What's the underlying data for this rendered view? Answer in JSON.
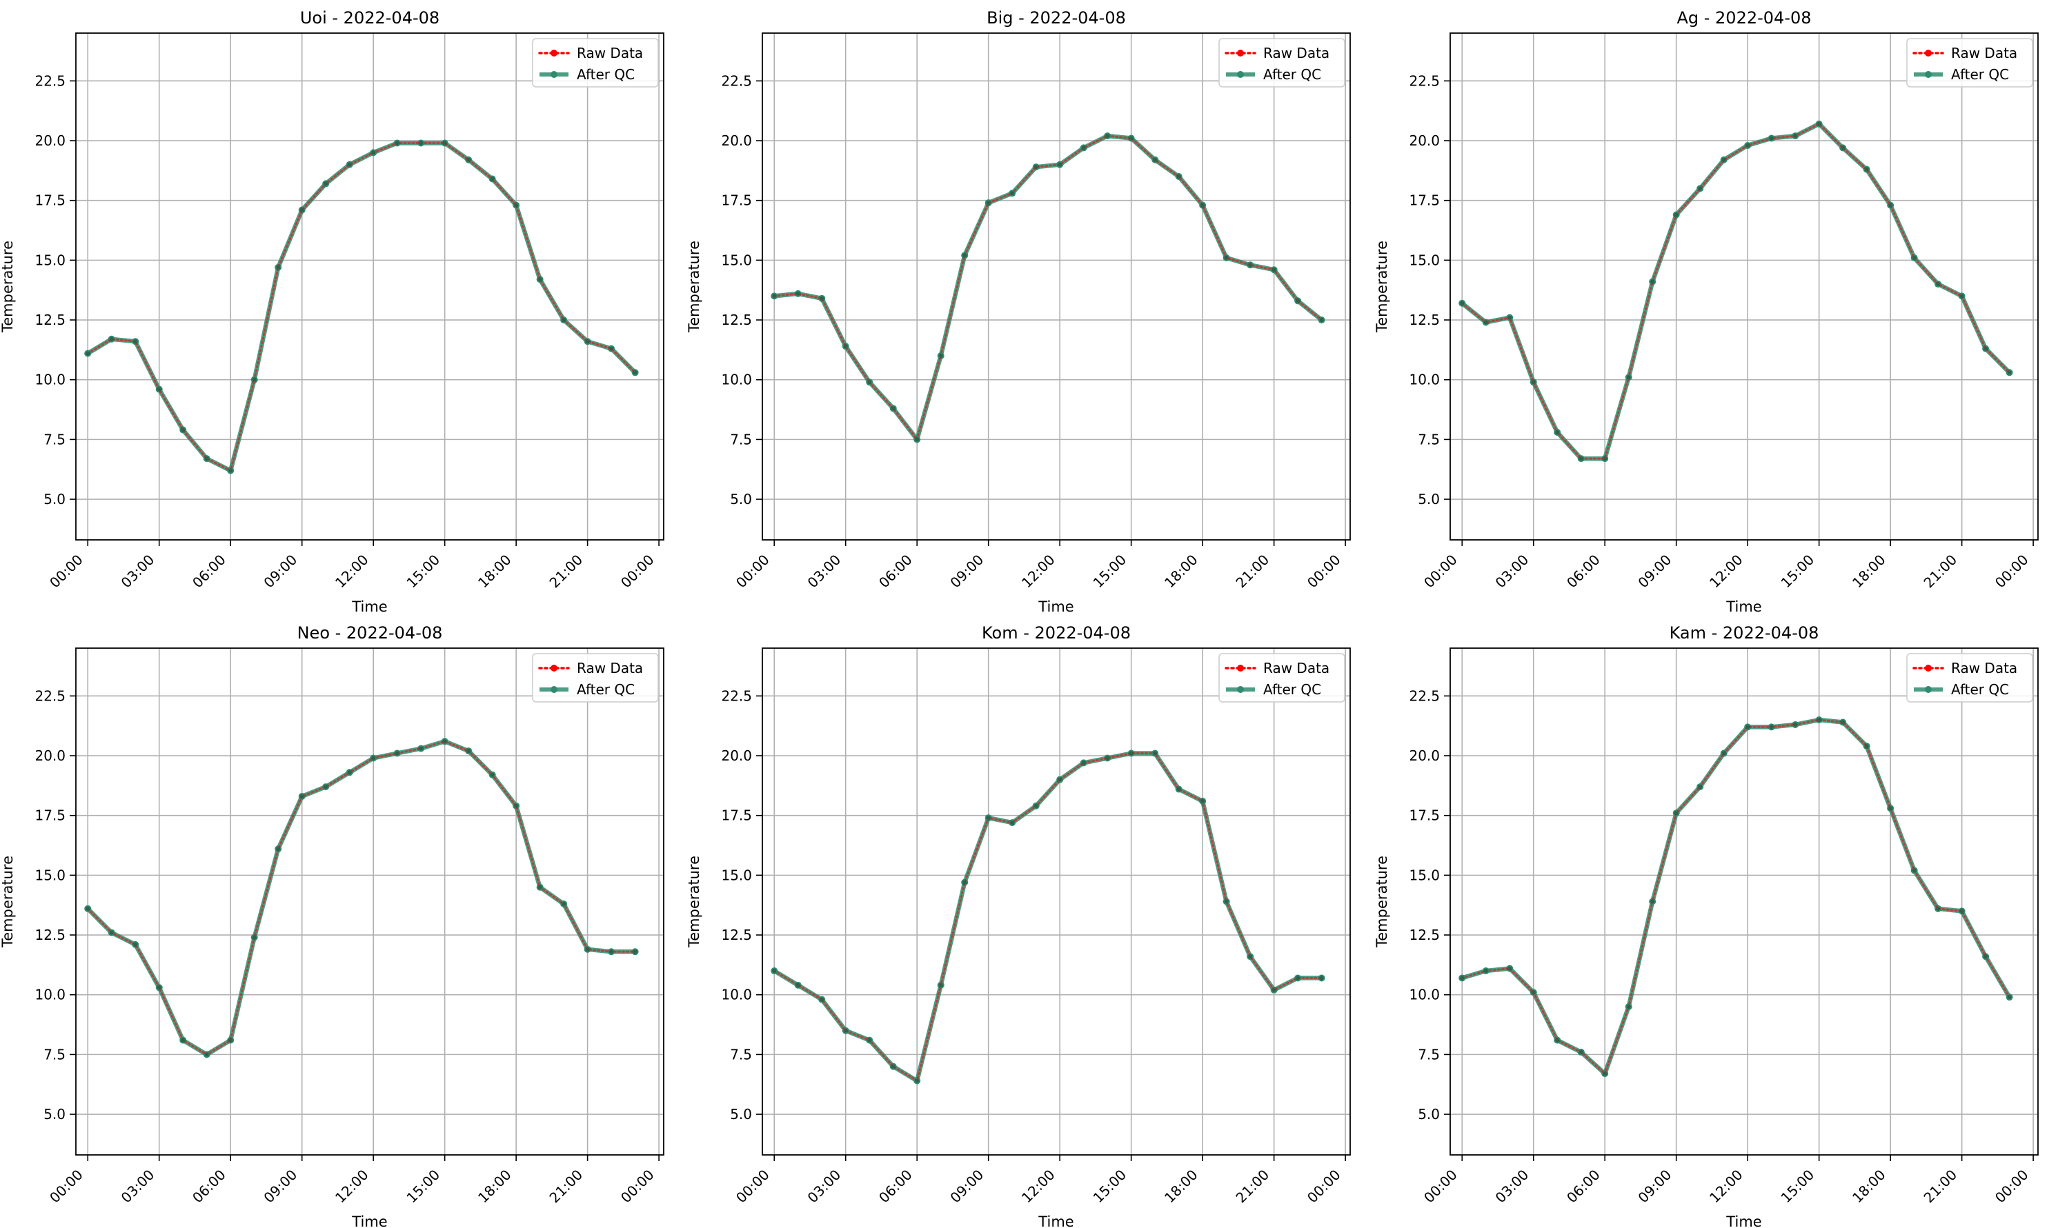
{
  "figure": {
    "xlabel": "Time",
    "ylabel": "Temperature",
    "legend": {
      "raw": "Raw Data",
      "qc": "After QC"
    },
    "colors": {
      "raw": "#ff0000",
      "qc": "#2e8b6f",
      "grid": "#b0b0b0",
      "axis": "#000000"
    }
  },
  "chart_data": [
    {
      "type": "line",
      "title": "Uoi - 2022-04-08",
      "xlabel": "Time",
      "ylabel": "Temperature",
      "x": [
        "00:00",
        "01:00",
        "02:00",
        "03:00",
        "04:00",
        "05:00",
        "06:00",
        "07:00",
        "08:00",
        "09:00",
        "10:00",
        "11:00",
        "12:00",
        "13:00",
        "14:00",
        "15:00",
        "16:00",
        "17:00",
        "18:00",
        "19:00",
        "20:00",
        "21:00",
        "22:00",
        "23:00"
      ],
      "x_ticks": [
        "00:00",
        "03:00",
        "06:00",
        "09:00",
        "12:00",
        "15:00",
        "18:00",
        "21:00",
        "00:00"
      ],
      "y_ticks": [
        "5.0",
        "7.5",
        "10.0",
        "12.5",
        "15.0",
        "17.5",
        "20.0",
        "22.5"
      ],
      "ylim": [
        3.3,
        24.5
      ],
      "xlim_hours": [
        -0.5,
        24.2
      ],
      "grid": true,
      "legend_position": "top-right",
      "series": [
        {
          "name": "Raw Data",
          "values": [
            11.1,
            11.7,
            11.6,
            9.6,
            7.9,
            6.7,
            6.2,
            10.0,
            14.7,
            17.1,
            18.2,
            19.0,
            19.5,
            19.9,
            19.9,
            19.9,
            19.2,
            18.4,
            17.3,
            14.2,
            12.5,
            11.6,
            11.3,
            10.3
          ]
        },
        {
          "name": "After QC",
          "values": [
            11.1,
            11.7,
            11.6,
            9.6,
            7.9,
            6.7,
            6.2,
            10.0,
            14.7,
            17.1,
            18.2,
            19.0,
            19.5,
            19.9,
            19.9,
            19.9,
            19.2,
            18.4,
            17.3,
            14.2,
            12.5,
            11.6,
            11.3,
            10.3
          ]
        }
      ]
    },
    {
      "type": "line",
      "title": "Big - 2022-04-08",
      "xlabel": "Time",
      "ylabel": "Temperature",
      "x": [
        "00:00",
        "01:00",
        "02:00",
        "03:00",
        "04:00",
        "05:00",
        "06:00",
        "07:00",
        "08:00",
        "09:00",
        "10:00",
        "11:00",
        "12:00",
        "13:00",
        "14:00",
        "15:00",
        "16:00",
        "17:00",
        "18:00",
        "19:00",
        "20:00",
        "21:00",
        "22:00",
        "23:00"
      ],
      "x_ticks": [
        "00:00",
        "03:00",
        "06:00",
        "09:00",
        "12:00",
        "15:00",
        "18:00",
        "21:00",
        "00:00"
      ],
      "y_ticks": [
        "5.0",
        "7.5",
        "10.0",
        "12.5",
        "15.0",
        "17.5",
        "20.0",
        "22.5"
      ],
      "ylim": [
        3.3,
        24.5
      ],
      "xlim_hours": [
        -0.5,
        24.2
      ],
      "grid": true,
      "legend_position": "top-right",
      "series": [
        {
          "name": "Raw Data",
          "values": [
            13.5,
            13.6,
            13.4,
            11.4,
            9.9,
            8.8,
            7.5,
            11.0,
            15.2,
            17.4,
            17.8,
            18.9,
            19.0,
            19.7,
            20.2,
            20.1,
            19.2,
            18.5,
            17.3,
            15.1,
            14.8,
            14.6,
            13.3,
            12.5
          ]
        },
        {
          "name": "After QC",
          "values": [
            13.5,
            13.6,
            13.4,
            11.4,
            9.9,
            8.8,
            7.5,
            11.0,
            15.2,
            17.4,
            17.8,
            18.9,
            19.0,
            19.7,
            20.2,
            20.1,
            19.2,
            18.5,
            17.3,
            15.1,
            14.8,
            14.6,
            13.3,
            12.5
          ]
        }
      ]
    },
    {
      "type": "line",
      "title": "Ag - 2022-04-08",
      "xlabel": "Time",
      "ylabel": "Temperature",
      "x": [
        "00:00",
        "01:00",
        "02:00",
        "03:00",
        "04:00",
        "05:00",
        "06:00",
        "07:00",
        "08:00",
        "09:00",
        "10:00",
        "11:00",
        "12:00",
        "13:00",
        "14:00",
        "15:00",
        "16:00",
        "17:00",
        "18:00",
        "19:00",
        "20:00",
        "21:00",
        "22:00",
        "23:00"
      ],
      "x_ticks": [
        "00:00",
        "03:00",
        "06:00",
        "09:00",
        "12:00",
        "15:00",
        "18:00",
        "21:00",
        "00:00"
      ],
      "y_ticks": [
        "5.0",
        "7.5",
        "10.0",
        "12.5",
        "15.0",
        "17.5",
        "20.0",
        "22.5"
      ],
      "ylim": [
        3.3,
        24.5
      ],
      "xlim_hours": [
        -0.5,
        24.2
      ],
      "grid": true,
      "legend_position": "top-right",
      "series": [
        {
          "name": "Raw Data",
          "values": [
            13.2,
            12.4,
            12.6,
            9.9,
            7.8,
            6.7,
            6.7,
            10.1,
            14.1,
            16.9,
            18.0,
            19.2,
            19.8,
            20.1,
            20.2,
            20.7,
            19.7,
            18.8,
            17.3,
            15.1,
            14.0,
            13.5,
            11.3,
            10.3
          ]
        },
        {
          "name": "After QC",
          "values": [
            13.2,
            12.4,
            12.6,
            9.9,
            7.8,
            6.7,
            6.7,
            10.1,
            14.1,
            16.9,
            18.0,
            19.2,
            19.8,
            20.1,
            20.2,
            20.7,
            19.7,
            18.8,
            17.3,
            15.1,
            14.0,
            13.5,
            11.3,
            10.3
          ]
        }
      ]
    },
    {
      "type": "line",
      "title": "Neo - 2022-04-08",
      "xlabel": "Time",
      "ylabel": "Temperature",
      "x": [
        "00:00",
        "01:00",
        "02:00",
        "03:00",
        "04:00",
        "05:00",
        "06:00",
        "07:00",
        "08:00",
        "09:00",
        "10:00",
        "11:00",
        "12:00",
        "13:00",
        "14:00",
        "15:00",
        "16:00",
        "17:00",
        "18:00",
        "19:00",
        "20:00",
        "21:00",
        "22:00",
        "23:00"
      ],
      "x_ticks": [
        "00:00",
        "03:00",
        "06:00",
        "09:00",
        "12:00",
        "15:00",
        "18:00",
        "21:00",
        "00:00"
      ],
      "y_ticks": [
        "5.0",
        "7.5",
        "10.0",
        "12.5",
        "15.0",
        "17.5",
        "20.0",
        "22.5"
      ],
      "ylim": [
        3.3,
        24.5
      ],
      "xlim_hours": [
        -0.5,
        24.2
      ],
      "grid": true,
      "legend_position": "top-right",
      "series": [
        {
          "name": "Raw Data",
          "values": [
            13.6,
            12.6,
            12.1,
            10.3,
            8.1,
            7.5,
            8.1,
            12.4,
            16.1,
            18.3,
            18.7,
            19.3,
            19.9,
            20.1,
            20.3,
            20.6,
            20.2,
            19.2,
            17.9,
            14.5,
            13.8,
            11.9,
            11.8,
            11.8
          ]
        },
        {
          "name": "After QC",
          "values": [
            13.6,
            12.6,
            12.1,
            10.3,
            8.1,
            7.5,
            8.1,
            12.4,
            16.1,
            18.3,
            18.7,
            19.3,
            19.9,
            20.1,
            20.3,
            20.6,
            20.2,
            19.2,
            17.9,
            14.5,
            13.8,
            11.9,
            11.8,
            11.8
          ]
        }
      ]
    },
    {
      "type": "line",
      "title": "Kom - 2022-04-08",
      "xlabel": "Time",
      "ylabel": "Temperature",
      "x": [
        "00:00",
        "01:00",
        "02:00",
        "03:00",
        "04:00",
        "05:00",
        "06:00",
        "07:00",
        "08:00",
        "09:00",
        "10:00",
        "11:00",
        "12:00",
        "13:00",
        "14:00",
        "15:00",
        "16:00",
        "17:00",
        "18:00",
        "19:00",
        "20:00",
        "21:00",
        "22:00",
        "23:00"
      ],
      "x_ticks": [
        "00:00",
        "03:00",
        "06:00",
        "09:00",
        "12:00",
        "15:00",
        "18:00",
        "21:00",
        "00:00"
      ],
      "y_ticks": [
        "5.0",
        "7.5",
        "10.0",
        "12.5",
        "15.0",
        "17.5",
        "20.0",
        "22.5"
      ],
      "ylim": [
        3.3,
        24.5
      ],
      "xlim_hours": [
        -0.5,
        24.2
      ],
      "grid": true,
      "legend_position": "top-right",
      "series": [
        {
          "name": "Raw Data",
          "values": [
            11.0,
            10.4,
            9.8,
            8.5,
            8.1,
            7.0,
            6.4,
            10.4,
            14.7,
            17.4,
            17.2,
            17.9,
            19.0,
            19.7,
            19.9,
            20.1,
            20.1,
            18.6,
            18.1,
            13.9,
            11.6,
            10.2,
            10.7,
            10.7
          ]
        },
        {
          "name": "After QC",
          "values": [
            11.0,
            10.4,
            9.8,
            8.5,
            8.1,
            7.0,
            6.4,
            10.4,
            14.7,
            17.4,
            17.2,
            17.9,
            19.0,
            19.7,
            19.9,
            20.1,
            20.1,
            18.6,
            18.1,
            13.9,
            11.6,
            10.2,
            10.7,
            10.7
          ]
        }
      ]
    },
    {
      "type": "line",
      "title": "Kam - 2022-04-08",
      "xlabel": "Time",
      "ylabel": "Temperature",
      "x": [
        "00:00",
        "01:00",
        "02:00",
        "03:00",
        "04:00",
        "05:00",
        "06:00",
        "07:00",
        "08:00",
        "09:00",
        "10:00",
        "11:00",
        "12:00",
        "13:00",
        "14:00",
        "15:00",
        "16:00",
        "17:00",
        "18:00",
        "19:00",
        "20:00",
        "21:00",
        "22:00",
        "23:00"
      ],
      "x_ticks": [
        "00:00",
        "03:00",
        "06:00",
        "09:00",
        "12:00",
        "15:00",
        "18:00",
        "21:00",
        "00:00"
      ],
      "y_ticks": [
        "5.0",
        "7.5",
        "10.0",
        "12.5",
        "15.0",
        "17.5",
        "20.0",
        "22.5"
      ],
      "ylim": [
        3.3,
        24.5
      ],
      "xlim_hours": [
        -0.5,
        24.2
      ],
      "grid": true,
      "legend_position": "top-right",
      "series": [
        {
          "name": "Raw Data",
          "values": [
            10.7,
            11.0,
            11.1,
            10.1,
            8.1,
            7.6,
            6.7,
            9.5,
            13.9,
            17.6,
            18.7,
            20.1,
            21.2,
            21.2,
            21.3,
            21.5,
            21.4,
            20.4,
            17.8,
            15.2,
            13.6,
            13.5,
            11.6,
            9.9
          ]
        },
        {
          "name": "After QC",
          "values": [
            10.7,
            11.0,
            11.1,
            10.1,
            8.1,
            7.6,
            6.7,
            9.5,
            13.9,
            17.6,
            18.7,
            20.1,
            21.2,
            21.2,
            21.3,
            21.5,
            21.4,
            20.4,
            17.8,
            15.2,
            13.6,
            13.5,
            11.6,
            9.9
          ]
        }
      ]
    }
  ]
}
